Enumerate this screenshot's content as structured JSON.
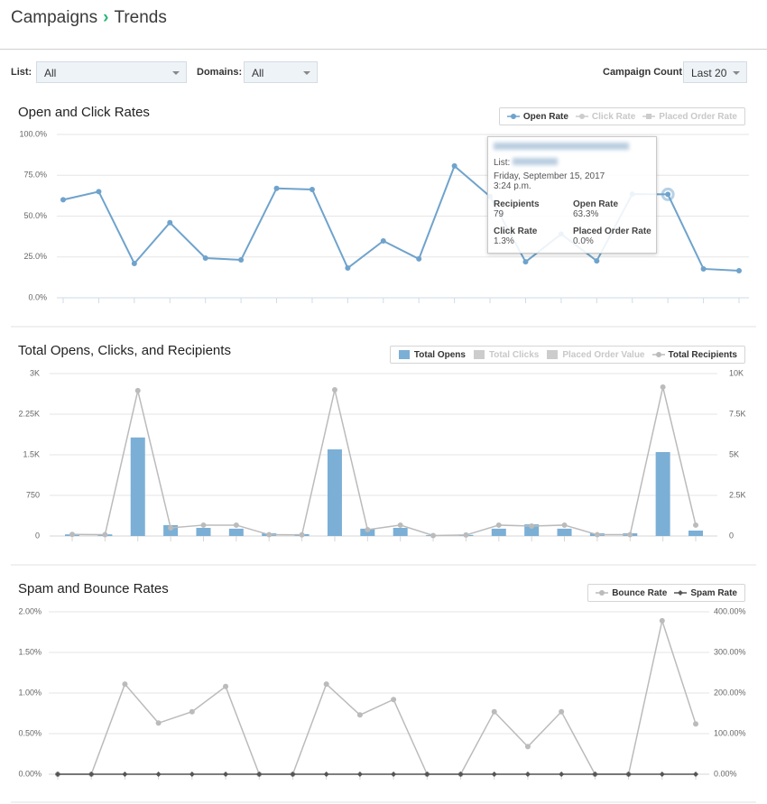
{
  "header": {
    "section": "Campaigns",
    "page": "Trends"
  },
  "filters": [
    {
      "label": "List:",
      "value": "All"
    },
    {
      "label": "Domains:",
      "value": "All"
    },
    {
      "label": "Campaign Count:",
      "value": "Last 20"
    }
  ],
  "tooltip": {
    "list_label": "List:",
    "date": "Friday, September 15, 2017",
    "time": "3:24 p.m.",
    "items": [
      {
        "label": "Recipients",
        "value": "79"
      },
      {
        "label": "Open Rate",
        "value": "63.3%"
      },
      {
        "label": "Click Rate",
        "value": "1.3%"
      },
      {
        "label": "Placed Order Rate",
        "value": "0.0%"
      }
    ]
  },
  "chart_data": [
    {
      "type": "line",
      "title": "Open and Click Rates",
      "categories": [
        null,
        null,
        null,
        null,
        null,
        null,
        null,
        null,
        null,
        null,
        null,
        null,
        null,
        null,
        null,
        null,
        null,
        null,
        null,
        null
      ],
      "ylim": [
        0,
        100
      ],
      "yticks": [
        {
          "value": 0,
          "label": "0.0%"
        },
        {
          "value": 25,
          "label": "25.0%"
        },
        {
          "value": 50,
          "label": "50.0%"
        },
        {
          "value": 75,
          "label": "75.0%"
        },
        {
          "value": 100,
          "label": "100.0%"
        }
      ],
      "grid": true,
      "series": [
        {
          "name": "Open Rate",
          "color": "#6fa3cc",
          "values": [
            60,
            65,
            21,
            46,
            24.3,
            23.2,
            67,
            66.3,
            18.2,
            34.8,
            23.8,
            80.7,
            62,
            22,
            39,
            22.6,
            63.5,
            63.3,
            17.7,
            16.6
          ]
        },
        {
          "name": "Click Rate",
          "color": "#cccccc",
          "hidden": true
        },
        {
          "name": "Placed Order Rate",
          "color": "#cccccc",
          "hidden": true,
          "marker": "square"
        }
      ]
    },
    {
      "type": "bar",
      "title": "Total Opens, Clicks, and Recipients",
      "categories": [
        null,
        null,
        null,
        null,
        null,
        null,
        null,
        null,
        null,
        null,
        null,
        null,
        null,
        null,
        null,
        null,
        null,
        null,
        null,
        null
      ],
      "ylim": [
        0,
        3000
      ],
      "yticks": [
        0,
        750,
        {
          "value": 1500,
          "label": "1.5K"
        },
        {
          "value": 2250,
          "label": "2.25K"
        },
        {
          "value": 3000,
          "label": "3K"
        }
      ],
      "y2lim": [
        0,
        10000
      ],
      "y2ticks": [
        0,
        {
          "value": 2500,
          "label": "2.5K"
        },
        {
          "value": 5000,
          "label": "5K"
        },
        {
          "value": 7500,
          "label": "7.5K"
        },
        {
          "value": 10000,
          "label": "10K"
        }
      ],
      "grid": true,
      "series": [
        {
          "name": "Total Opens",
          "color": "#7bafd6",
          "values": [
            30,
            30,
            1820,
            200,
            150,
            135,
            50,
            35,
            1600,
            135,
            150,
            15,
            20,
            135,
            215,
            135,
            50,
            50,
            1550,
            100
          ]
        },
        {
          "name": "Total Clicks",
          "color": "#cccccc",
          "hidden": true
        },
        {
          "name": "Placed Order Value",
          "color": "#cccccc",
          "hidden": true
        },
        {
          "name": "Total Recipients",
          "color": "#bbbbbb",
          "type": "line",
          "axis": "y2",
          "values": [
            100,
            80,
            8950,
            500,
            670,
            670,
            80,
            70,
            9000,
            390,
            670,
            30,
            60,
            670,
            610,
            670,
            80,
            80,
            9170,
            670
          ]
        }
      ]
    },
    {
      "type": "line",
      "title": "Spam and Bounce Rates",
      "categories": [
        null,
        null,
        null,
        null,
        null,
        null,
        null,
        null,
        null,
        null,
        null,
        null,
        null,
        null,
        null,
        null,
        null,
        null,
        null,
        null
      ],
      "ylim": [
        0,
        2
      ],
      "yticks": [
        {
          "value": 0,
          "label": "0.00%"
        },
        {
          "value": 0.5,
          "label": "0.50%"
        },
        {
          "value": 1,
          "label": "1.00%"
        },
        {
          "value": 1.5,
          "label": "1.50%"
        },
        {
          "value": 2,
          "label": "2.00%"
        }
      ],
      "y2lim": [
        0,
        400
      ],
      "y2ticks": [
        {
          "value": 0,
          "label": "0.00%"
        },
        {
          "value": 100,
          "label": "100.00%"
        },
        {
          "value": 200,
          "label": "200.00%"
        },
        {
          "value": 300,
          "label": "300.00%"
        },
        {
          "value": 400,
          "label": "400.00%"
        }
      ],
      "grid": true,
      "series": [
        {
          "name": "Bounce Rate",
          "color": "#bbbbbb",
          "values": [
            0,
            0,
            1.11,
            0.63,
            0.77,
            1.08,
            0,
            0,
            1.11,
            0.73,
            0.92,
            0,
            0,
            0.77,
            0.34,
            0.77,
            0,
            0,
            1.89,
            0.62
          ]
        },
        {
          "name": "Spam Rate",
          "color": "#555555",
          "axis": "y2",
          "marker": "diamond",
          "values": [
            0,
            0,
            0,
            0,
            0,
            0,
            0,
            0,
            0,
            0,
            0,
            0,
            0,
            0,
            0,
            0,
            0,
            0,
            0,
            0
          ]
        }
      ]
    }
  ]
}
